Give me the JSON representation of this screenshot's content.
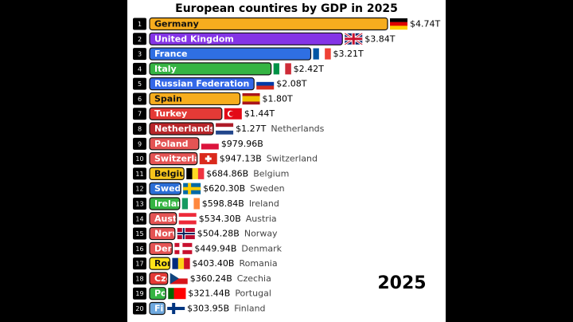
{
  "chart_data": {
    "type": "bar",
    "orientation": "horizontal",
    "title": "European countires by GDP in 2025",
    "year_label": "2025",
    "ranks": [
      1,
      2,
      3,
      4,
      5,
      6,
      7,
      8,
      9,
      10,
      11,
      12,
      13,
      14,
      15,
      16,
      17,
      18,
      19,
      20
    ],
    "categories": [
      "Germany",
      "United Kingdom",
      "France",
      "Italy",
      "Russian Federation",
      "Spain",
      "Turkey",
      "Netherlands",
      "Poland",
      "Switzerland",
      "Belgium",
      "Sweden",
      "Ireland",
      "Austria",
      "Norway",
      "Denmark",
      "Romania",
      "Czechia",
      "Portugal",
      "Finland"
    ],
    "values": [
      4740,
      3840,
      3210,
      2420,
      2080,
      1800,
      1440,
      1270,
      979.96,
      947.13,
      684.86,
      620.3,
      598.84,
      534.3,
      504.28,
      449.94,
      403.4,
      360.24,
      321.44,
      303.95
    ],
    "value_labels": [
      "$4.74T",
      "$3.84T",
      "$3.21T",
      "$2.42T",
      "$2.08T",
      "$1.80T",
      "$1.44T",
      "$1.27T",
      "$979.96B",
      "$947.13B",
      "$684.86B",
      "$620.30B",
      "$598.84B",
      "$534.30B",
      "$504.28B",
      "$449.94B",
      "$403.40B",
      "$360.24B",
      "$321.44B",
      "$303.95B"
    ],
    "colors": [
      "#f7ad1e",
      "#8434e6",
      "#2f6fe3",
      "#35b443",
      "#3468e8",
      "#f7ad1e",
      "#e43a36",
      "#b8262a",
      "#e45454",
      "#e45454",
      "#f7c51c",
      "#2b6ed6",
      "#35b443",
      "#e45454",
      "#e45454",
      "#e45454",
      "#ffe21a",
      "#e43a36",
      "#35b443",
      "#6ea8de"
    ],
    "xlim": [
      0,
      4740
    ]
  }
}
